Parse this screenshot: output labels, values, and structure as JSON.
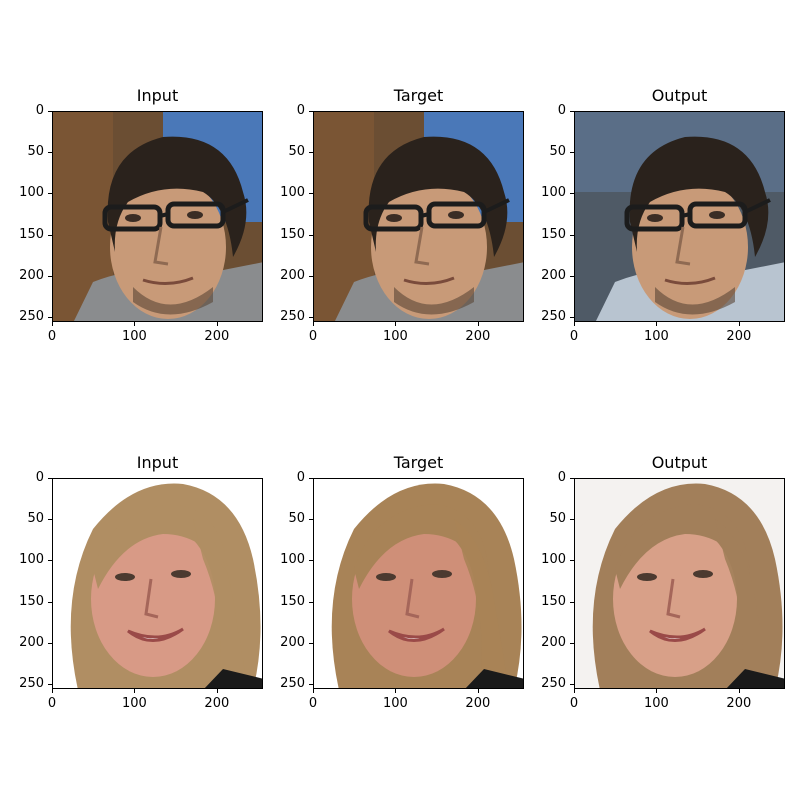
{
  "figure": {
    "panels": [
      {
        "title": "Input"
      },
      {
        "title": "Target"
      },
      {
        "title": "Output"
      },
      {
        "title": "Input"
      },
      {
        "title": "Target"
      },
      {
        "title": "Output"
      }
    ]
  },
  "chart_data": [
    {
      "type": "image",
      "title": "Input",
      "xlim": [
        0,
        256
      ],
      "ylim": [
        256,
        0
      ],
      "xticks": [
        "0",
        "100",
        "200"
      ],
      "yticks": [
        "0",
        "50",
        "100",
        "150",
        "200",
        "250"
      ],
      "subject": "man-with-glasses"
    },
    {
      "type": "image",
      "title": "Target",
      "xlim": [
        0,
        256
      ],
      "ylim": [
        256,
        0
      ],
      "xticks": [
        "0",
        "100",
        "200"
      ],
      "yticks": [
        "0",
        "50",
        "100",
        "150",
        "200",
        "250"
      ],
      "subject": "man-with-glasses"
    },
    {
      "type": "image",
      "title": "Output",
      "xlim": [
        0,
        256
      ],
      "ylim": [
        256,
        0
      ],
      "xticks": [
        "0",
        "100",
        "200"
      ],
      "yticks": [
        "0",
        "50",
        "100",
        "150",
        "200",
        "250"
      ],
      "subject": "man-with-glasses"
    },
    {
      "type": "image",
      "title": "Input",
      "xlim": [
        0,
        256
      ],
      "ylim": [
        256,
        0
      ],
      "xticks": [
        "0",
        "100",
        "200"
      ],
      "yticks": [
        "0",
        "50",
        "100",
        "150",
        "200",
        "250"
      ],
      "subject": "woman-blonde"
    },
    {
      "type": "image",
      "title": "Target",
      "xlim": [
        0,
        256
      ],
      "ylim": [
        256,
        0
      ],
      "xticks": [
        "0",
        "100",
        "200"
      ],
      "yticks": [
        "0",
        "50",
        "100",
        "150",
        "200",
        "250"
      ],
      "subject": "woman-blonde"
    },
    {
      "type": "image",
      "title": "Output",
      "xlim": [
        0,
        256
      ],
      "ylim": [
        256,
        0
      ],
      "xticks": [
        "0",
        "100",
        "200"
      ],
      "yticks": [
        "0",
        "50",
        "100",
        "150",
        "200",
        "250"
      ],
      "subject": "woman-blonde"
    }
  ]
}
